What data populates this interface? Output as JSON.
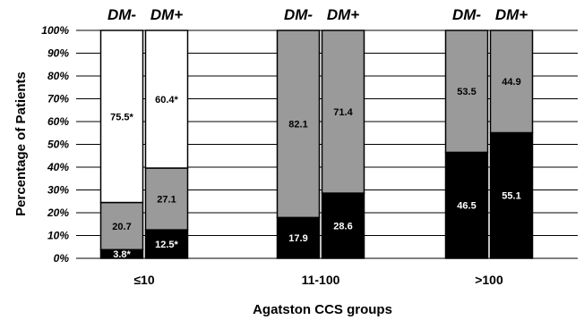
{
  "chart_data": {
    "type": "bar",
    "stacked": true,
    "xlabel": "Agatston CCS groups",
    "ylabel": "Percentage of Patients",
    "ylim": [
      0,
      100
    ],
    "yticks": [
      "0%",
      "10%",
      "20%",
      "30%",
      "40%",
      "50%",
      "60%",
      "70%",
      "80%",
      "90%",
      "100%"
    ],
    "categories": [
      "≤10",
      "11-100",
      ">100"
    ],
    "subgroup_labels": [
      "DM-",
      "DM+"
    ],
    "grid": true,
    "colors": {
      "black": "#000000",
      "gray": "#9a9a9a",
      "white": "#ffffff"
    },
    "bars": [
      {
        "category": "≤10",
        "subgroup": "DM-",
        "segments": [
          {
            "value": 3.8,
            "label": "3.8*",
            "color": "black"
          },
          {
            "value": 20.7,
            "label": "20.7",
            "color": "gray"
          },
          {
            "value": 75.5,
            "label": "75.5*",
            "color": "white"
          }
        ]
      },
      {
        "category": "≤10",
        "subgroup": "DM+",
        "segments": [
          {
            "value": 12.5,
            "label": "12.5*",
            "color": "black"
          },
          {
            "value": 27.1,
            "label": "27.1",
            "color": "gray"
          },
          {
            "value": 60.4,
            "label": "60.4*",
            "color": "white"
          }
        ]
      },
      {
        "category": "11-100",
        "subgroup": "DM-",
        "segments": [
          {
            "value": 17.9,
            "label": "17.9",
            "color": "black"
          },
          {
            "value": 82.1,
            "label": "82.1",
            "color": "gray"
          }
        ]
      },
      {
        "category": "11-100",
        "subgroup": "DM+",
        "segments": [
          {
            "value": 28.6,
            "label": "28.6",
            "color": "black"
          },
          {
            "value": 71.4,
            "label": "71.4",
            "color": "gray"
          }
        ]
      },
      {
        "category": ">100",
        "subgroup": "DM-",
        "segments": [
          {
            "value": 46.5,
            "label": "46.5",
            "color": "black"
          },
          {
            "value": 53.5,
            "label": "53.5",
            "color": "gray"
          }
        ]
      },
      {
        "category": ">100",
        "subgroup": "DM+",
        "segments": [
          {
            "value": 55.1,
            "label": "55.1",
            "color": "black"
          },
          {
            "value": 44.9,
            "label": "44.9",
            "color": "gray"
          }
        ]
      }
    ]
  }
}
